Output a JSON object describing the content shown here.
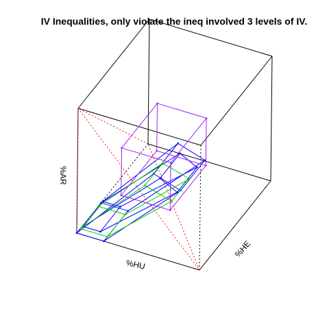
{
  "chart_data": {
    "type": "3d-wireframe",
    "title": "IV Inequalities, only violate the ineq involved 3 levels of IV.",
    "axes": {
      "x": {
        "label": "%HU"
      },
      "y": {
        "label": "%HE"
      },
      "z": {
        "label": "%AR"
      }
    },
    "simplex_color": "#ff0000",
    "series": [
      {
        "color": "#0000ff",
        "shape": "parallelepiped",
        "vertices": [
          [
            0.62,
            0.0,
            0.66
          ],
          [
            0.84,
            0.0,
            0.59
          ],
          [
            0.62,
            0.34,
            0.66
          ],
          [
            0.84,
            0.34,
            0.59
          ],
          [
            0.0,
            0.0,
            0.0
          ],
          [
            0.22,
            0.0,
            0.0
          ],
          [
            0.0,
            0.34,
            0.0
          ],
          [
            0.22,
            0.34,
            0.0
          ]
        ]
      },
      {
        "color": "#0000ff",
        "shape": "parallelepiped",
        "vertices": [
          [
            0.66,
            0.02,
            0.62
          ],
          [
            0.8,
            0.02,
            0.55
          ],
          [
            0.66,
            0.3,
            0.62
          ],
          [
            0.8,
            0.3,
            0.55
          ],
          [
            0.04,
            0.02,
            0.05
          ],
          [
            0.18,
            0.02,
            0.05
          ],
          [
            0.04,
            0.3,
            0.05
          ],
          [
            0.18,
            0.3,
            0.05
          ]
        ]
      },
      {
        "color": "#00cc00",
        "shape": "parallelepiped",
        "vertices": [
          [
            0.52,
            0.05,
            0.5
          ],
          [
            0.74,
            0.05,
            0.44
          ],
          [
            0.52,
            0.3,
            0.5
          ],
          [
            0.74,
            0.3,
            0.44
          ],
          [
            0.0,
            0.05,
            0.0
          ],
          [
            0.22,
            0.05,
            0.0
          ],
          [
            0.0,
            0.3,
            0.0
          ],
          [
            0.22,
            0.3,
            0.0
          ]
        ]
      },
      {
        "color": "#a020f0",
        "shape": "box",
        "vertices": [
          [
            0.3,
            0.1,
            0.32
          ],
          [
            0.7,
            0.1,
            0.32
          ],
          [
            0.3,
            0.6,
            0.32
          ],
          [
            0.7,
            0.6,
            0.32
          ],
          [
            0.3,
            0.1,
            0.7
          ],
          [
            0.7,
            0.1,
            0.7
          ],
          [
            0.3,
            0.6,
            0.7
          ],
          [
            0.7,
            0.6,
            0.7
          ]
        ]
      }
    ]
  }
}
